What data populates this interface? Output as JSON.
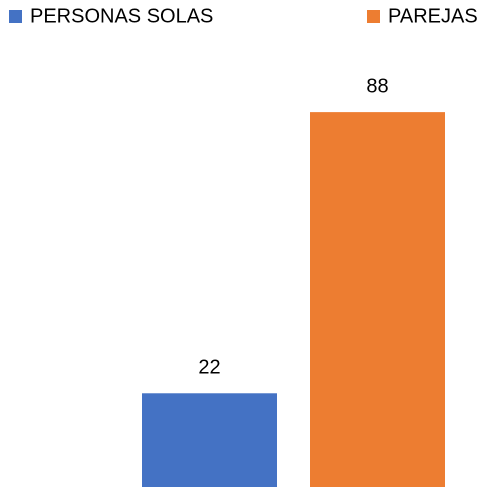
{
  "chart_data": {
    "type": "bar",
    "categories": [
      null
    ],
    "series": [
      {
        "name": "PERSONAS SOLAS",
        "color": "#4472c4",
        "values": [
          22
        ]
      },
      {
        "name": "PAREJAS",
        "color": "#ed7d31",
        "values": [
          88
        ]
      }
    ],
    "ylim": [
      0,
      100
    ]
  }
}
